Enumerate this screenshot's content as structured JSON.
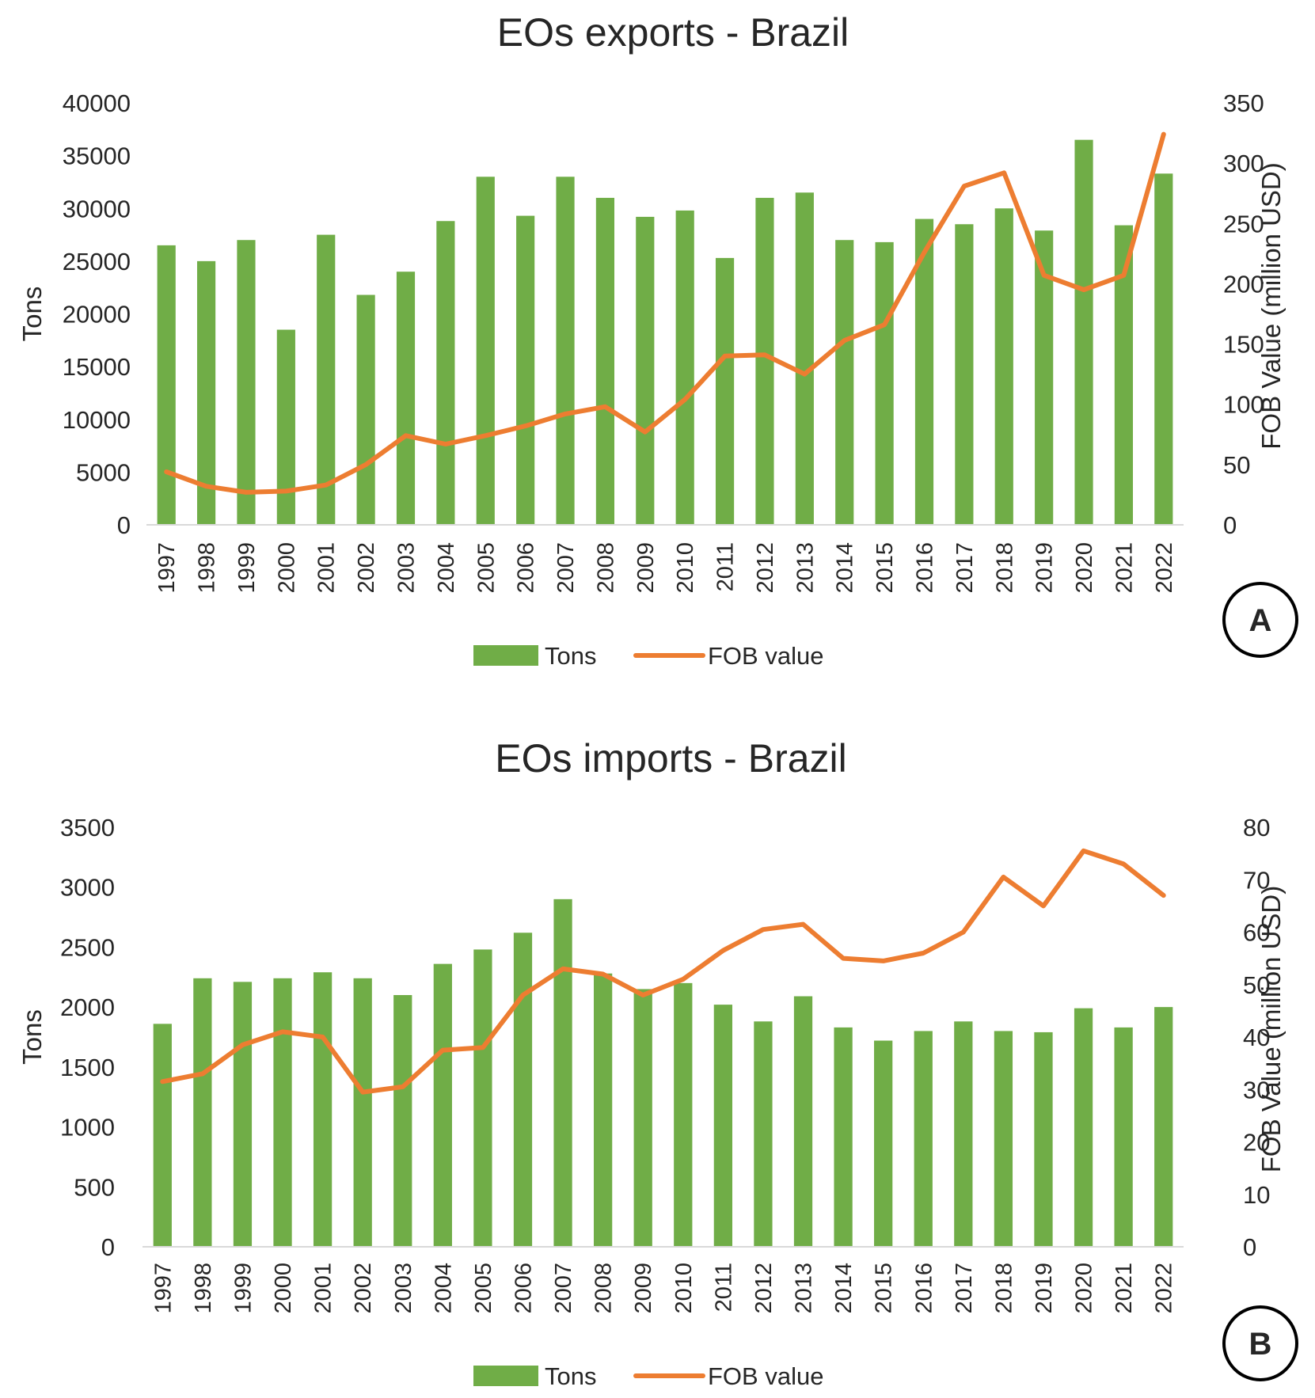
{
  "chart_data": [
    {
      "type": "bar",
      "panel": "A",
      "title": "EOs exports - Brazil",
      "ylabel": "Tons",
      "y2label": "FOB Value (million USD)",
      "ylim": [
        0,
        40000
      ],
      "yticks": [
        "0",
        "5000",
        "10000",
        "15000",
        "20000",
        "25000",
        "30000",
        "35000",
        "40000"
      ],
      "y2lim": [
        0,
        350
      ],
      "y2ticks": [
        "0",
        "50",
        "100",
        "150",
        "200",
        "250",
        "300",
        "350"
      ],
      "legend_position": "bottom",
      "categories": [
        "1997",
        "1998",
        "1999",
        "2000",
        "2001",
        "2002",
        "2003",
        "2004",
        "2005",
        "2006",
        "2007",
        "2008",
        "2009",
        "2010",
        "2011",
        "2012",
        "2013",
        "2014",
        "2015",
        "2016",
        "2017",
        "2018",
        "2019",
        "2020",
        "2021",
        "2022"
      ],
      "series": [
        {
          "name": "Tons",
          "type": "bar",
          "axis": "left",
          "color": "#70ad47",
          "values": [
            26500,
            25000,
            27000,
            18500,
            27500,
            21800,
            24000,
            28800,
            33000,
            29300,
            33000,
            31000,
            29200,
            29800,
            25300,
            31000,
            31500,
            27000,
            26800,
            29000,
            28500,
            30000,
            27900,
            36500,
            28400,
            33300
          ]
        },
        {
          "name": "FOB value",
          "type": "line",
          "axis": "right",
          "color": "#ed7d31",
          "values": [
            44,
            32,
            27,
            28,
            33,
            50,
            74,
            67,
            74,
            82,
            92,
            98,
            77,
            104,
            140,
            141,
            125,
            153,
            166,
            226,
            281,
            292,
            207,
            195,
            207,
            324
          ]
        }
      ]
    },
    {
      "type": "bar",
      "panel": "B",
      "title": "EOs imports - Brazil",
      "ylabel": "Tons",
      "y2label": "FOB Value (million USD)",
      "ylim": [
        0,
        3500
      ],
      "yticks": [
        "0",
        "500",
        "1000",
        "1500",
        "2000",
        "2500",
        "3000",
        "3500"
      ],
      "y2lim": [
        0,
        80
      ],
      "y2ticks": [
        "0",
        "10",
        "20",
        "30",
        "40",
        "50",
        "60",
        "70",
        "80"
      ],
      "legend_position": "bottom",
      "categories": [
        "1997",
        "1998",
        "1999",
        "2000",
        "2001",
        "2002",
        "2003",
        "2004",
        "2005",
        "2006",
        "2007",
        "2008",
        "2009",
        "2010",
        "2011",
        "2012",
        "2013",
        "2014",
        "2015",
        "2016",
        "2017",
        "2018",
        "2019",
        "2020",
        "2021",
        "2022"
      ],
      "series": [
        {
          "name": "Tons",
          "type": "bar",
          "axis": "left",
          "color": "#70ad47",
          "values": [
            1860,
            2240,
            2210,
            2240,
            2290,
            2240,
            2100,
            2360,
            2480,
            2620,
            2900,
            2280,
            2150,
            2200,
            2020,
            1880,
            2090,
            1830,
            1720,
            1800,
            1880,
            1800,
            1790,
            1990,
            1830,
            2000
          ]
        },
        {
          "name": "FOB value",
          "type": "line",
          "axis": "right",
          "color": "#ed7d31",
          "values": [
            31.5,
            33,
            38.5,
            41,
            40,
            29.5,
            30.5,
            37.5,
            38,
            48,
            53,
            52,
            48,
            51,
            56.5,
            60.5,
            61.5,
            55,
            54.5,
            56,
            60,
            70.5,
            65,
            75.5,
            73,
            67
          ]
        }
      ]
    }
  ]
}
